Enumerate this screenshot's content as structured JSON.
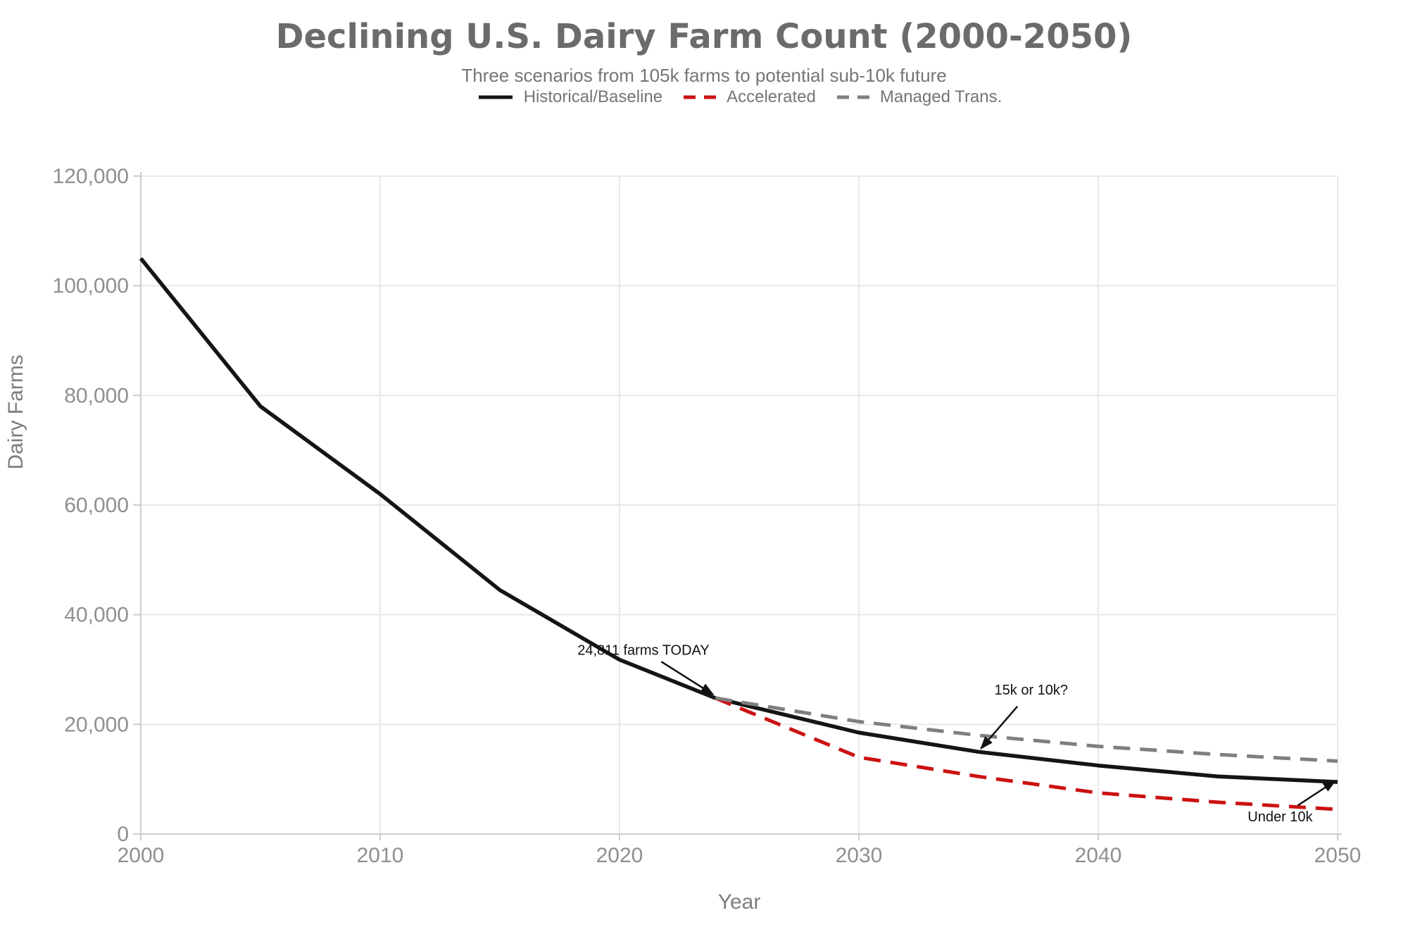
{
  "chart_data": {
    "type": "line",
    "title": "Declining U.S. Dairy Farm Count (2000-2050)",
    "subtitle": "Three scenarios from 105k farms to potential sub-10k future",
    "xlabel": "Year",
    "ylabel": "Dairy Farms",
    "xlim": [
      2000,
      2050
    ],
    "ylim": [
      0,
      120000
    ],
    "x_ticks": [
      2000,
      2010,
      2020,
      2030,
      2040,
      2050
    ],
    "y_ticks": [
      0,
      20000,
      40000,
      60000,
      80000,
      100000,
      120000
    ],
    "grid": true,
    "legend_position": "top-center",
    "series": [
      {
        "name": "Historical/Baseline",
        "color": "#151515",
        "line_style": "solid",
        "x": [
          2000,
          2005,
          2010,
          2015,
          2020,
          2024,
          2030,
          2035,
          2040,
          2045,
          2050
        ],
        "values": [
          105000,
          78000,
          62000,
          44500,
          31800,
          24811,
          18500,
          15000,
          12500,
          10500,
          9500
        ]
      },
      {
        "name": "Accelerated",
        "color": "#cc1111",
        "line_style": "dashed",
        "x": [
          2024,
          2030,
          2035,
          2040,
          2045,
          2050
        ],
        "values": [
          24811,
          14000,
          10500,
          7500,
          5800,
          4500
        ]
      },
      {
        "name": "Managed Trans.",
        "color": "#7f7f7f",
        "line_style": "dashed",
        "x": [
          2024,
          2030,
          2035,
          2040,
          2045,
          2050
        ],
        "values": [
          24811,
          20500,
          18000,
          16000,
          14500,
          13300
        ]
      }
    ],
    "annotations": [
      {
        "text": "24,811 farms TODAY",
        "text_x": 2021.0,
        "text_y": 33500,
        "arrow_x": 2023.9,
        "arrow_y": 25500
      },
      {
        "text": "15k or 10k?",
        "text_x": 2037.2,
        "text_y": 26200,
        "arrow_x": 2035.1,
        "arrow_y": 15600
      },
      {
        "text": "Under 10k",
        "text_x": 2047.6,
        "text_y": 3100,
        "arrow_x": 2049.9,
        "arrow_y": 9700
      }
    ],
    "style": {
      "background": "#ffffff",
      "title_color": "#6b6b6b",
      "subtitle_color": "#757575",
      "legend_text_color": "#757575",
      "tick_label_color": "#8f8f8f",
      "axis_title_color": "#7d7d7d",
      "grid_color": "#e8e8e8",
      "spine_color": "#cccccc",
      "annotation_color": "#111111"
    }
  }
}
